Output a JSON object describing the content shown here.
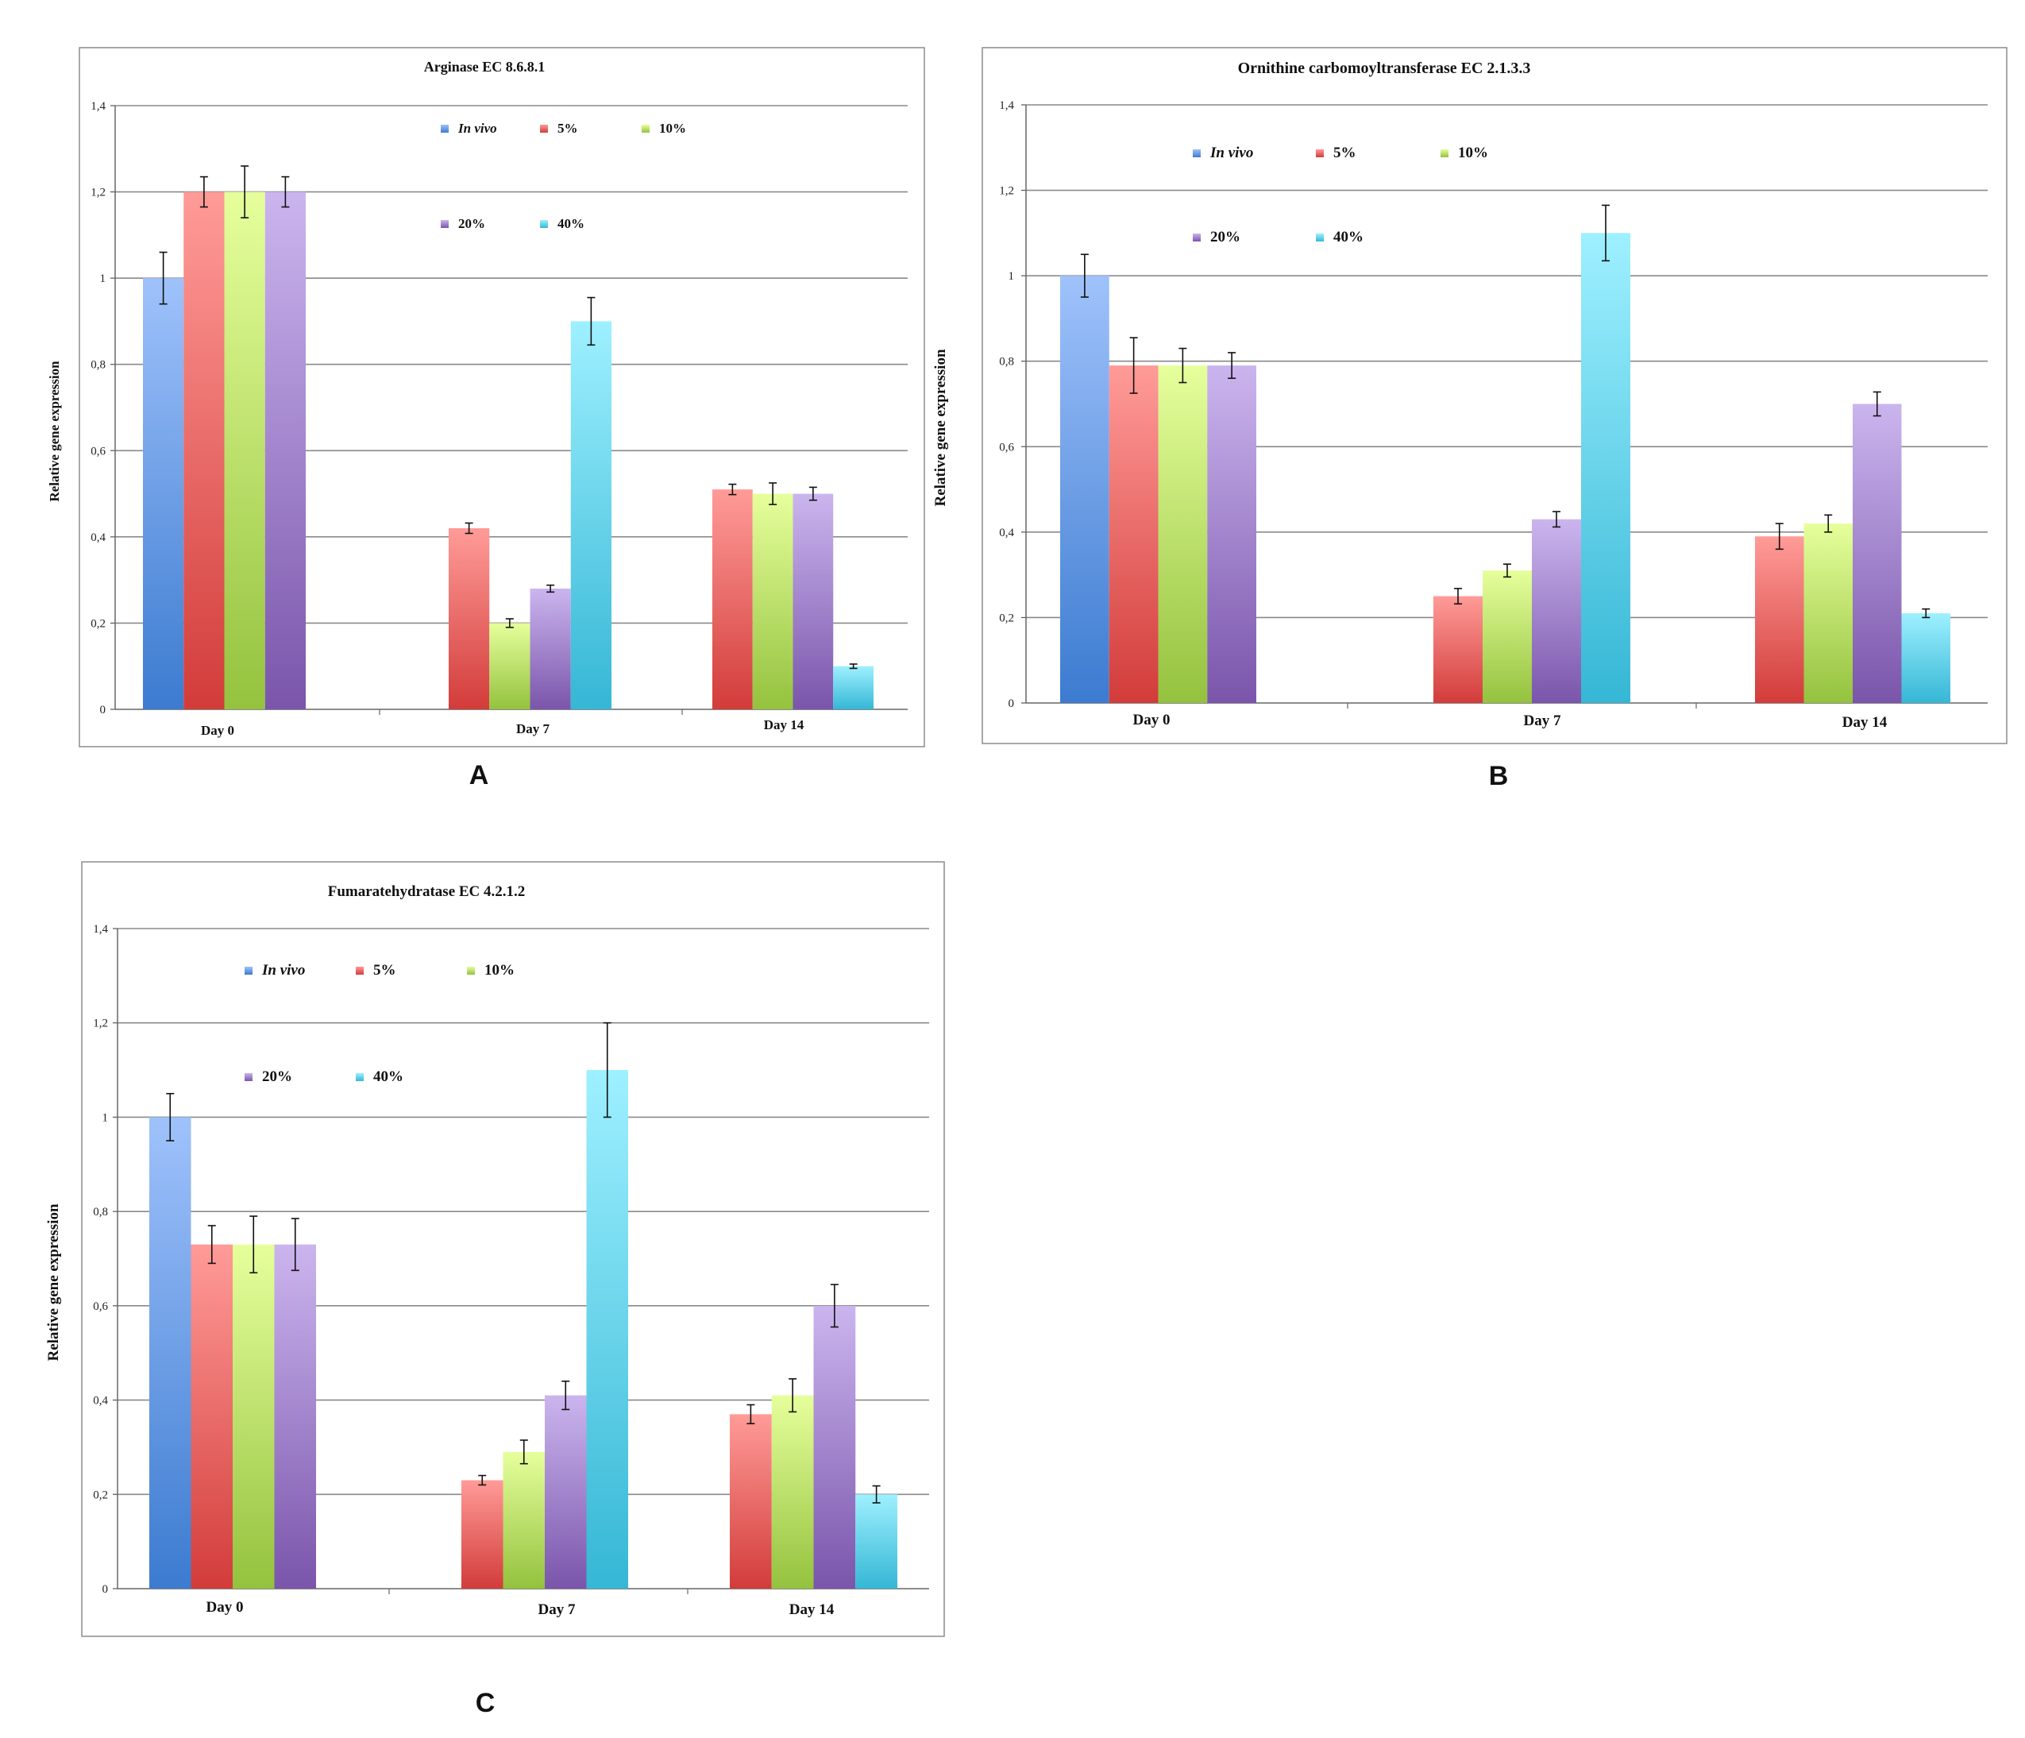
{
  "series_colors": {
    "In vivo": {
      "top": "#9fc2fb",
      "bottom": "#3c7bd0"
    },
    "5%": {
      "top": "#ff9b98",
      "bottom": "#d23c3a"
    },
    "10%": {
      "top": "#e6ff9c",
      "bottom": "#94c23e"
    },
    "20%": {
      "top": "#cbb5ee",
      "bottom": "#7a55ab"
    },
    "40%": {
      "top": "#9ef0ff",
      "bottom": "#35b7d5"
    }
  },
  "chart_data": [
    {
      "id": "A",
      "type": "bar",
      "title": "Arginase EC 8.6.8.1",
      "panel_label": "A",
      "ylabel": "Relative gene expression",
      "xlabel": "",
      "ylim": [
        0,
        1.4
      ],
      "yticks": [
        "0",
        "0,2",
        "0,4",
        "0,6",
        "0,8",
        "1",
        "1,2",
        "1,4"
      ],
      "categories": [
        "Day 0",
        "Day 7",
        "Day 14"
      ],
      "grid": true,
      "legend_placement": "top-center",
      "series": [
        {
          "name": "In vivo",
          "values": [
            1.0,
            null,
            null
          ],
          "errors": [
            0.06,
            null,
            null
          ]
        },
        {
          "name": "5%",
          "values": [
            1.2,
            0.42,
            0.51
          ],
          "errors": [
            0.035,
            0.012,
            0.012
          ]
        },
        {
          "name": "10%",
          "values": [
            1.2,
            0.2,
            0.5
          ],
          "errors": [
            0.06,
            0.01,
            0.025
          ]
        },
        {
          "name": "20%",
          "values": [
            1.2,
            0.28,
            0.5
          ],
          "errors": [
            0.035,
            0.008,
            0.015
          ]
        },
        {
          "name": "40%",
          "values": [
            null,
            0.9,
            0.1
          ],
          "errors": [
            null,
            0.055,
            0.005
          ]
        }
      ]
    },
    {
      "id": "B",
      "type": "bar",
      "title": "Ornithine carbomoyltransferase EC 2.1.3.3",
      "panel_label": "B",
      "ylabel": "Relative gene expression",
      "xlabel": "",
      "ylim": [
        0,
        1.4
      ],
      "yticks": [
        "0",
        "0,2",
        "0,4",
        "0,6",
        "0,8",
        "1",
        "1,2",
        "1,4"
      ],
      "categories": [
        "Day 0",
        "Day 7",
        "Day 14"
      ],
      "grid": true,
      "legend_placement": "top-center",
      "series": [
        {
          "name": "In vivo",
          "values": [
            1.0,
            null,
            null
          ],
          "errors": [
            0.05,
            null,
            null
          ]
        },
        {
          "name": "5%",
          "values": [
            0.79,
            0.25,
            0.39
          ],
          "errors": [
            0.065,
            0.018,
            0.03
          ]
        },
        {
          "name": "10%",
          "values": [
            0.79,
            0.31,
            0.42
          ],
          "errors": [
            0.04,
            0.015,
            0.02
          ]
        },
        {
          "name": "20%",
          "values": [
            0.79,
            0.43,
            0.7
          ],
          "errors": [
            0.03,
            0.018,
            0.028
          ]
        },
        {
          "name": "40%",
          "values": [
            null,
            1.1,
            0.21
          ],
          "errors": [
            null,
            0.065,
            0.01
          ]
        }
      ]
    },
    {
      "id": "C",
      "type": "bar",
      "title": "Fumaratehydratase EC 4.2.1.2",
      "panel_label": "C",
      "ylabel": "Relative gene expression",
      "xlabel": "",
      "ylim": [
        0,
        1.4
      ],
      "yticks": [
        "0",
        "0,2",
        "0,4",
        "0,6",
        "0,8",
        "1",
        "1,2",
        "1,4"
      ],
      "categories": [
        "Day 0",
        "Day 7",
        "Day 14"
      ],
      "grid": true,
      "legend_placement": "top-center",
      "series": [
        {
          "name": "In vivo",
          "values": [
            1.0,
            null,
            null
          ],
          "errors": [
            0.05,
            null,
            null
          ]
        },
        {
          "name": "5%",
          "values": [
            0.73,
            0.23,
            0.37
          ],
          "errors": [
            0.04,
            0.01,
            0.02
          ]
        },
        {
          "name": "10%",
          "values": [
            0.73,
            0.29,
            0.41
          ],
          "errors": [
            0.06,
            0.025,
            0.035
          ]
        },
        {
          "name": "20%",
          "values": [
            0.73,
            0.41,
            0.6
          ],
          "errors": [
            0.055,
            0.03,
            0.045
          ]
        },
        {
          "name": "40%",
          "values": [
            null,
            1.1,
            0.2
          ],
          "errors": [
            null,
            0.1,
            0.018
          ]
        }
      ]
    }
  ]
}
